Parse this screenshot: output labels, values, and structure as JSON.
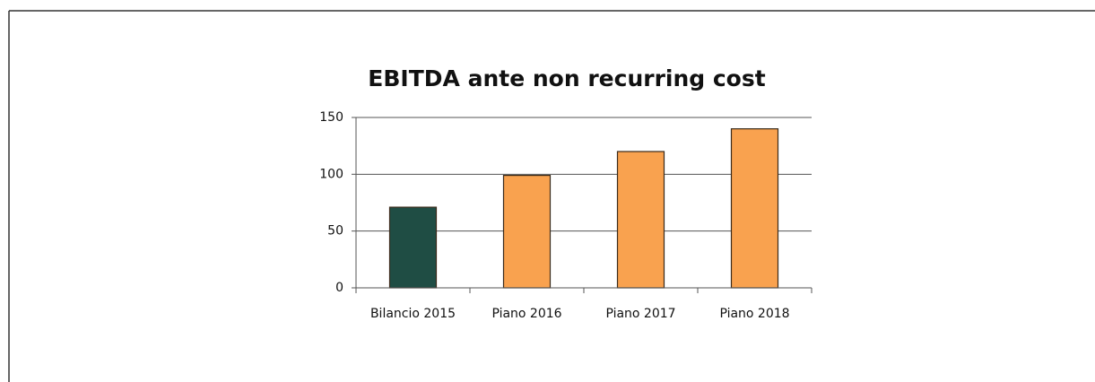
{
  "chart_data": {
    "type": "bar",
    "title": "EBITDA ante non recurring cost",
    "categories": [
      "Bilancio 2015",
      "Piano 2016",
      "Piano 2017",
      "Piano 2018"
    ],
    "values": [
      71,
      99,
      120,
      140
    ],
    "colors": [
      "#1f4d44",
      "#f9a24f",
      "#f9a24f",
      "#f9a24f"
    ],
    "ylim": [
      0,
      150
    ],
    "yticks": [
      0,
      50,
      100,
      150
    ],
    "grid": true
  }
}
